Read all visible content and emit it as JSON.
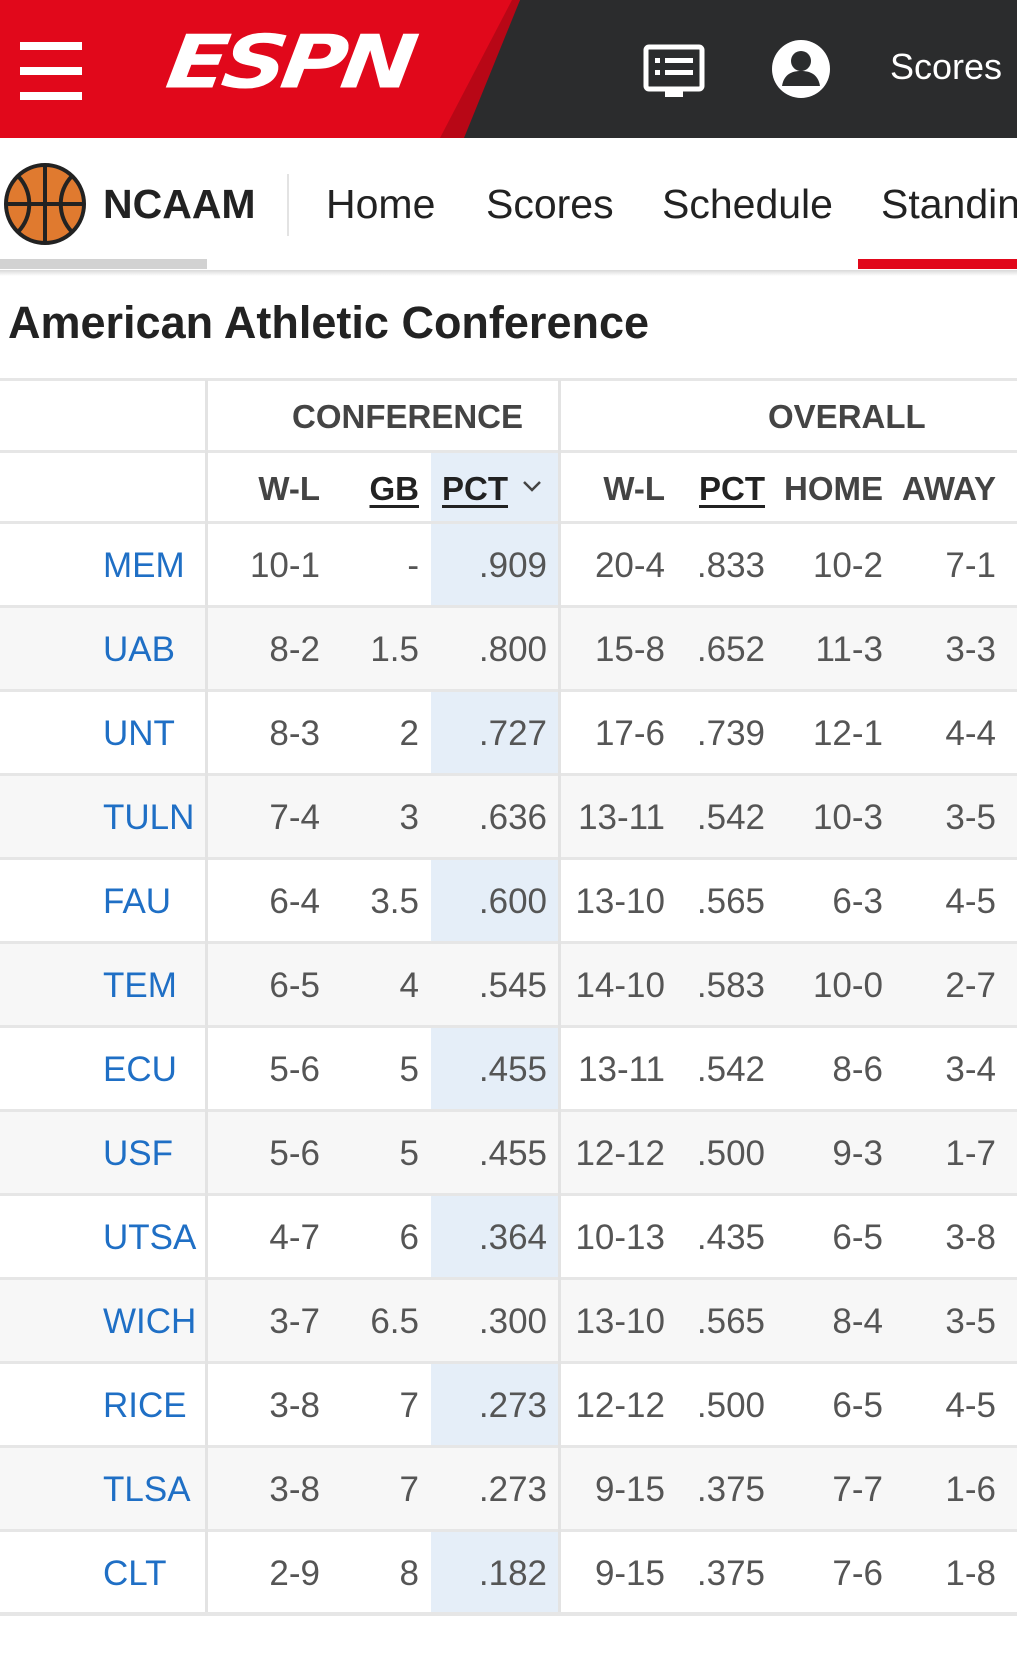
{
  "header": {
    "logo_text": "ESPN",
    "scores_label": "Scores",
    "colors": {
      "brand_red": "#e1081b",
      "header_dark": "#2b2c2d",
      "link_blue": "#1f6fc5",
      "pct_highlight": "#e5eef8"
    }
  },
  "subnav": {
    "sport": "NCAAM",
    "links": [
      "Home",
      "Scores",
      "Schedule",
      "Standin"
    ]
  },
  "page": {
    "title": "American Athletic Conference"
  },
  "table": {
    "groups": {
      "conference": "CONFERENCE",
      "overall": "OVERALL"
    },
    "columns": {
      "conf_wl": "W-L",
      "gb": "GB",
      "conf_pct": "PCT",
      "ovr_wl": "W-L",
      "ovr_pct": "PCT",
      "home": "HOME",
      "away": "AWAY"
    },
    "rows": [
      {
        "team": "MEM",
        "conf_wl": "10-1",
        "gb": "-",
        "conf_pct": ".909",
        "ovr_wl": "20-4",
        "ovr_pct": ".833",
        "home": "10-2",
        "away": "7-1"
      },
      {
        "team": "UAB",
        "conf_wl": "8-2",
        "gb": "1.5",
        "conf_pct": ".800",
        "ovr_wl": "15-8",
        "ovr_pct": ".652",
        "home": "11-3",
        "away": "3-3"
      },
      {
        "team": "UNT",
        "conf_wl": "8-3",
        "gb": "2",
        "conf_pct": ".727",
        "ovr_wl": "17-6",
        "ovr_pct": ".739",
        "home": "12-1",
        "away": "4-4"
      },
      {
        "team": "TULN",
        "conf_wl": "7-4",
        "gb": "3",
        "conf_pct": ".636",
        "ovr_wl": "13-11",
        "ovr_pct": ".542",
        "home": "10-3",
        "away": "3-5"
      },
      {
        "team": "FAU",
        "conf_wl": "6-4",
        "gb": "3.5",
        "conf_pct": ".600",
        "ovr_wl": "13-10",
        "ovr_pct": ".565",
        "home": "6-3",
        "away": "4-5"
      },
      {
        "team": "TEM",
        "conf_wl": "6-5",
        "gb": "4",
        "conf_pct": ".545",
        "ovr_wl": "14-10",
        "ovr_pct": ".583",
        "home": "10-0",
        "away": "2-7"
      },
      {
        "team": "ECU",
        "conf_wl": "5-6",
        "gb": "5",
        "conf_pct": ".455",
        "ovr_wl": "13-11",
        "ovr_pct": ".542",
        "home": "8-6",
        "away": "3-4"
      },
      {
        "team": "USF",
        "conf_wl": "5-6",
        "gb": "5",
        "conf_pct": ".455",
        "ovr_wl": "12-12",
        "ovr_pct": ".500",
        "home": "9-3",
        "away": "1-7"
      },
      {
        "team": "UTSA",
        "conf_wl": "4-7",
        "gb": "6",
        "conf_pct": ".364",
        "ovr_wl": "10-13",
        "ovr_pct": ".435",
        "home": "6-5",
        "away": "3-8"
      },
      {
        "team": "WICH",
        "conf_wl": "3-7",
        "gb": "6.5",
        "conf_pct": ".300",
        "ovr_wl": "13-10",
        "ovr_pct": ".565",
        "home": "8-4",
        "away": "3-5"
      },
      {
        "team": "RICE",
        "conf_wl": "3-8",
        "gb": "7",
        "conf_pct": ".273",
        "ovr_wl": "12-12",
        "ovr_pct": ".500",
        "home": "6-5",
        "away": "4-5"
      },
      {
        "team": "TLSA",
        "conf_wl": "3-8",
        "gb": "7",
        "conf_pct": ".273",
        "ovr_wl": "9-15",
        "ovr_pct": ".375",
        "home": "7-7",
        "away": "1-6"
      },
      {
        "team": "CLT",
        "conf_wl": "2-9",
        "gb": "8",
        "conf_pct": ".182",
        "ovr_wl": "9-15",
        "ovr_pct": ".375",
        "home": "7-6",
        "away": "1-8"
      }
    ]
  }
}
